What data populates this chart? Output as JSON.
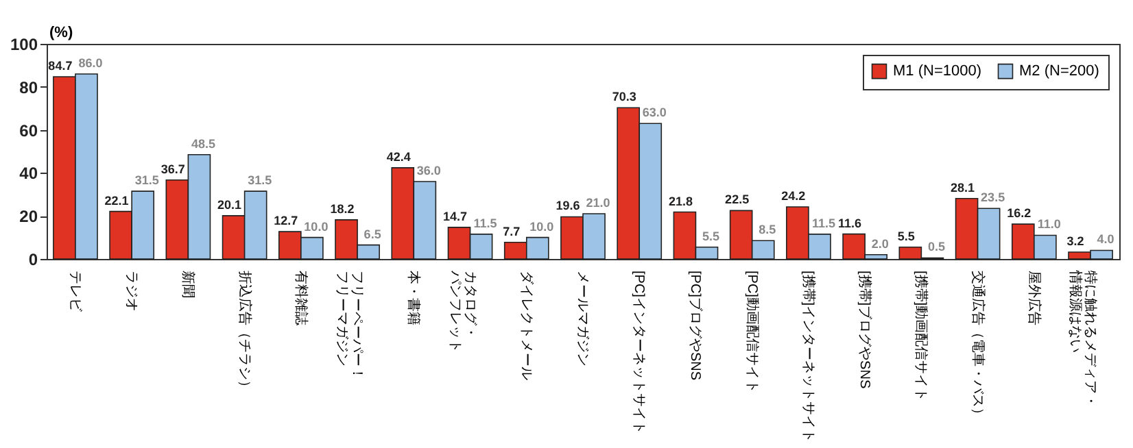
{
  "chart_data": {
    "type": "bar",
    "ylabel": "(%)",
    "categories": [
      "テレビ",
      "ラジオ",
      "新聞",
      "折込広告（チラシ）",
      "有料雑誌",
      "フリーペーパー！フリーマガジン",
      "本・書籍",
      "カタログ・パンフレット",
      "ダイレクトメール",
      "メールマガジン",
      "[PC]インターネットサイト",
      "[PC]ブログやSNS",
      "[PC]動画配信サイト",
      "[携帯]インターネットサイト",
      "[携帯]ブログやSNS",
      "[携帯]動画配信サイト",
      "交通広告（電車・バス）",
      "屋外広告",
      "特に触れるメディア・情報源はない"
    ],
    "series": [
      {
        "name": "M1 (N=1000)",
        "color": "#e03323",
        "values": [
          84.7,
          22.1,
          36.7,
          20.1,
          12.7,
          18.2,
          42.4,
          14.7,
          7.7,
          19.6,
          70.3,
          21.8,
          22.5,
          24.2,
          11.6,
          5.5,
          28.1,
          16.2,
          3.2
        ],
        "value_labels": [
          "84.7",
          "22.1",
          "36.7",
          "20.1",
          "12.7",
          "18.2",
          "42.4",
          "14.7",
          "7.7",
          "19.6",
          "70.3",
          "21.8",
          "22.5",
          "24.2",
          "11.6",
          "5.5",
          "28.1",
          "16.2",
          "3.2"
        ]
      },
      {
        "name": "M2 (N=200)",
        "color": "#9dc3e6",
        "values": [
          86.0,
          31.5,
          48.5,
          31.5,
          10.0,
          6.5,
          36.0,
          11.5,
          10.0,
          21.0,
          63.0,
          5.5,
          8.5,
          11.5,
          2.0,
          0.5,
          23.5,
          11.0,
          4.0
        ],
        "value_labels": [
          "86.0",
          "31.5",
          "48.5",
          "31.5",
          "10.0",
          "6.5",
          "36.0",
          "11.5",
          "10.0",
          "21.0",
          "63.0",
          "5.5",
          "8.5",
          "11.5",
          "2.0",
          "0.5",
          "23.5",
          "11.0",
          "4.0"
        ]
      }
    ],
    "ylim": [
      0,
      100
    ],
    "yticks": [
      0,
      20,
      40,
      60,
      80,
      100
    ],
    "grid": false,
    "legend": "top right"
  }
}
